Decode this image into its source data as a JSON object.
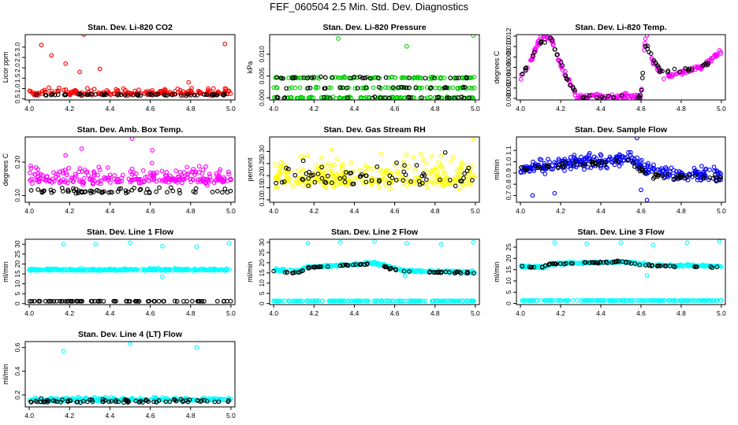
{
  "title": "FEF_060504  2.5 Min. Std. Dev. Diagnostics",
  "colors": {
    "red": "#ff0000",
    "green": "#00cc00",
    "magenta": "#ff00ff",
    "yellow": "#ffff00",
    "blue": "#0000ff",
    "cyan": "#00ffff",
    "black": "#000000"
  },
  "chart_data": [
    {
      "type": "scatter",
      "title": "Stan. Dev. Li-820 CO2",
      "xlabel": "",
      "ylabel": "Licor ppm",
      "xlim": [
        3.98,
        5.02
      ],
      "ylim": [
        0.45,
        3.6
      ],
      "xticks": [
        "4.0",
        "4.2",
        "4.4",
        "4.6",
        "4.8",
        "5.0"
      ],
      "yticks": [
        "0.5",
        "1.0",
        "1.5",
        "2.0",
        "2.5",
        "3.0"
      ],
      "series": [
        {
          "color": "red",
          "pattern": "noisy",
          "base": 0.78,
          "spread": 0.25,
          "count": 200,
          "points": [
            [
              4.06,
              3.1
            ],
            [
              4.27,
              3.6
            ],
            [
              4.18,
              2.2
            ],
            [
              4.35,
              1.95
            ],
            [
              4.11,
              2.6
            ],
            [
              4.97,
              3.15
            ],
            [
              4.79,
              1.3
            ],
            [
              4.25,
              1.8
            ]
          ]
        },
        {
          "color": "black",
          "pattern": "flat",
          "base": 0.7,
          "spread": 0.05,
          "count": 60
        }
      ]
    },
    {
      "type": "scatter",
      "title": "Stan. Dev. Li-820 Pressure",
      "xlabel": "",
      "ylabel": "kPa",
      "xlim": [
        3.98,
        5.02
      ],
      "ylim": [
        -0.0005,
        0.0145
      ],
      "xticks": [
        "4.0",
        "4.2",
        "4.4",
        "4.6",
        "4.8",
        "5.0"
      ],
      "yticks": [
        "0.000",
        "0.005",
        "0.010"
      ],
      "series": [
        {
          "color": "green",
          "pattern": "levels",
          "levels": [
            0.0,
            0.0023,
            0.0046
          ],
          "count": 260,
          "points": [
            [
              4.32,
              0.0136
            ],
            [
              4.66,
              0.0118
            ],
            [
              4.99,
              0.0143
            ]
          ]
        },
        {
          "color": "black",
          "pattern": "levels",
          "levels": [
            0.0,
            0.0023,
            0.0046
          ],
          "count": 80
        }
      ]
    },
    {
      "type": "scatter",
      "title": "Stan. Dev. Li-820 Temp.",
      "xlabel": "",
      "ylabel": "degrees C",
      "xlim": [
        3.98,
        5.02
      ],
      "ylim": [
        -0.0003,
        0.0123
      ],
      "xticks": [
        "4.0",
        "4.2",
        "4.4",
        "4.6",
        "4.8",
        "5.0"
      ],
      "yticks": [
        "0.000",
        "0.002",
        "0.004",
        "0.006",
        "0.008",
        "0.010",
        "0.012"
      ],
      "series": [
        {
          "color": "magenta",
          "pattern": "path",
          "count": 230,
          "jitter": 0.0008,
          "path": [
            [
              4.0,
              0.004
            ],
            [
              4.05,
              0.007
            ],
            [
              4.1,
              0.0118
            ],
            [
              4.15,
              0.0118
            ],
            [
              4.2,
              0.0065
            ],
            [
              4.25,
              0.0025
            ],
            [
              4.28,
              0.0003
            ],
            [
              4.6,
              0.0003
            ],
            [
              4.62,
              0.0115
            ],
            [
              4.66,
              0.007
            ],
            [
              4.72,
              0.004
            ],
            [
              4.8,
              0.005
            ],
            [
              4.9,
              0.006
            ],
            [
              5.0,
              0.009
            ]
          ],
          "points": [
            [
              4.99,
              0.0093
            ],
            [
              4.63,
              0.0122
            ],
            [
              4.11,
              0.0123
            ]
          ]
        },
        {
          "color": "black",
          "pattern": "path",
          "count": 70,
          "jitter": 0.0006,
          "path": [
            [
              4.0,
              0.004
            ],
            [
              4.05,
              0.0075
            ],
            [
              4.1,
              0.011
            ],
            [
              4.15,
              0.0115
            ],
            [
              4.2,
              0.007
            ],
            [
              4.24,
              0.003
            ],
            [
              4.3,
              0.0002
            ],
            [
              4.6,
              0.0002
            ],
            [
              4.62,
              0.0105
            ],
            [
              4.7,
              0.005
            ],
            [
              4.8,
              0.0055
            ],
            [
              4.9,
              0.006
            ],
            [
              5.0,
              0.0085
            ]
          ]
        }
      ]
    },
    {
      "type": "scatter",
      "title": "Stan. Dev. Amb. Box Temp.",
      "xlabel": "",
      "ylabel": "degrees C",
      "xlim": [
        3.98,
        5.02
      ],
      "ylim": [
        0.08,
        0.275
      ],
      "xticks": [
        "4.0",
        "4.2",
        "4.4",
        "4.6",
        "4.8",
        "5.0"
      ],
      "yticks": [
        "0.10",
        "0.20"
      ],
      "series": [
        {
          "color": "magenta",
          "pattern": "noisy",
          "base": 0.15,
          "spread": 0.04,
          "count": 260,
          "points": [
            [
              4.51,
              0.27
            ],
            [
              4.26,
              0.24
            ],
            [
              4.61,
              0.235
            ],
            [
              4.18,
              0.22
            ]
          ]
        },
        {
          "color": "black",
          "pattern": "noisy",
          "base": 0.112,
          "spread": 0.012,
          "count": 70
        }
      ]
    },
    {
      "type": "scatter",
      "title": "Stan. Dev. Gas Stream RH",
      "xlabel": "",
      "ylabel": "percent",
      "xlim": [
        3.98,
        5.02
      ],
      "ylim": [
        0.09,
        0.36
      ],
      "xticks": [
        "4.0",
        "4.2",
        "4.4",
        "4.6",
        "4.8",
        "5.0"
      ],
      "yticks": [
        "0.10",
        "0.15",
        "0.20",
        "0.25",
        "0.30"
      ],
      "series": [
        {
          "color": "yellow",
          "pattern": "noisy",
          "base": 0.19,
          "spread": 0.09,
          "count": 300,
          "points": [
            [
              4.99,
              0.35
            ]
          ]
        },
        {
          "color": "black",
          "pattern": "noisy",
          "base": 0.19,
          "spread": 0.08,
          "count": 70
        }
      ]
    },
    {
      "type": "scatter",
      "title": "Stan. Dev. Sample Flow",
      "xlabel": "",
      "ylabel": "ml/min",
      "xlim": [
        3.98,
        5.02
      ],
      "ylim": [
        0.64,
        1.22
      ],
      "xticks": [
        "4.0",
        "4.2",
        "4.4",
        "4.6",
        "4.8",
        "5.0"
      ],
      "yticks": [
        "0.7",
        "0.8",
        "0.9",
        "1.0",
        "1.1"
      ],
      "series": [
        {
          "color": "blue",
          "pattern": "path",
          "count": 300,
          "jitter": 0.09,
          "path": [
            [
              4.0,
              0.92
            ],
            [
              4.2,
              0.99
            ],
            [
              4.4,
              1.0
            ],
            [
              4.55,
              1.03
            ],
            [
              4.62,
              0.95
            ],
            [
              4.7,
              0.9
            ],
            [
              5.0,
              0.88
            ]
          ],
          "points": [
            [
              4.17,
              0.72
            ],
            [
              4.06,
              0.7
            ],
            [
              4.63,
              0.66
            ],
            [
              4.58,
              1.21
            ],
            [
              4.6,
              0.75
            ]
          ]
        },
        {
          "color": "black",
          "pattern": "path",
          "count": 80,
          "jitter": 0.04,
          "path": [
            [
              4.0,
              0.93
            ],
            [
              4.2,
              0.97
            ],
            [
              4.4,
              0.99
            ],
            [
              4.55,
              1.0
            ],
            [
              4.62,
              0.9
            ],
            [
              4.7,
              0.87
            ],
            [
              5.0,
              0.86
            ]
          ]
        }
      ]
    },
    {
      "type": "scatter",
      "title": "Stan. Dev. Line 1 Flow",
      "xlabel": "",
      "ylabel": "ml/min",
      "xlim": [
        3.98,
        5.02
      ],
      "ylim": [
        -0.5,
        32.5
      ],
      "xticks": [
        "4.0",
        "4.2",
        "4.4",
        "4.6",
        "4.8",
        "5.0"
      ],
      "yticks": [
        "0",
        "5",
        "10",
        "15",
        "20",
        "25",
        "30"
      ],
      "series": [
        {
          "color": "cyan",
          "pattern": "noisy",
          "base": 17.0,
          "spread": 0.8,
          "count": 300,
          "points": [
            [
              4.17,
              30.0
            ],
            [
              4.33,
              30.0
            ],
            [
              4.5,
              30.8
            ],
            [
              4.66,
              29.0
            ],
            [
              4.83,
              28.8
            ],
            [
              4.99,
              30.5
            ],
            [
              4.66,
              13.5
            ]
          ]
        },
        {
          "color": "black",
          "pattern": "flat",
          "base": 1.2,
          "spread": 0.1,
          "count": 80
        }
      ]
    },
    {
      "type": "scatter",
      "title": "Stan. Dev. Line 2 Flow",
      "xlabel": "",
      "ylabel": "ml/min",
      "xlim": [
        3.98,
        5.02
      ],
      "ylim": [
        -0.5,
        31.5
      ],
      "xticks": [
        "4.0",
        "4.2",
        "4.4",
        "4.6",
        "4.8",
        "5.0"
      ],
      "yticks": [
        "0",
        "5",
        "10",
        "15",
        "20",
        "25",
        "30"
      ],
      "series": [
        {
          "color": "cyan",
          "pattern": "path",
          "count": 300,
          "jitter": 0.8,
          "path": [
            [
              4.0,
              16.5
            ],
            [
              4.12,
              16.0
            ],
            [
              4.17,
              18.0
            ],
            [
              4.3,
              18.5
            ],
            [
              4.5,
              20.0
            ],
            [
              4.62,
              16.5
            ],
            [
              4.7,
              16.0
            ],
            [
              5.0,
              15.5
            ]
          ],
          "points": [
            [
              4.17,
              29.5
            ],
            [
              4.33,
              30.0
            ],
            [
              4.5,
              30.5
            ],
            [
              4.66,
              29.5
            ],
            [
              4.83,
              29.0
            ],
            [
              4.99,
              30.0
            ],
            [
              4.65,
              13.5
            ]
          ]
        },
        {
          "color": "cyan",
          "pattern": "flat",
          "base": 1.3,
          "spread": 0.15,
          "count": 200
        },
        {
          "color": "black",
          "pattern": "path",
          "count": 70,
          "jitter": 0.5,
          "path": [
            [
              4.0,
              16.0
            ],
            [
              4.12,
              15.0
            ],
            [
              4.17,
              17.5
            ],
            [
              4.3,
              18.5
            ],
            [
              4.5,
              19.5
            ],
            [
              4.62,
              16.0
            ],
            [
              4.7,
              15.5
            ],
            [
              5.0,
              15.0
            ]
          ]
        }
      ]
    },
    {
      "type": "scatter",
      "title": "Stan. Dev. Line 3 Flow",
      "xlabel": "",
      "ylabel": "ml/min",
      "xlim": [
        3.98,
        5.02
      ],
      "ylim": [
        -0.5,
        28.5
      ],
      "xticks": [
        "4.0",
        "4.2",
        "4.4",
        "4.6",
        "4.8",
        "5.0"
      ],
      "yticks": [
        "0",
        "5",
        "10",
        "15",
        "20",
        "25"
      ],
      "series": [
        {
          "color": "cyan",
          "pattern": "path",
          "count": 300,
          "jitter": 0.7,
          "path": [
            [
              4.0,
              16.5
            ],
            [
              4.12,
              16.0
            ],
            [
              4.15,
              17.5
            ],
            [
              4.3,
              18.0
            ],
            [
              4.5,
              18.5
            ],
            [
              4.62,
              17.5
            ],
            [
              4.7,
              17.0
            ],
            [
              5.0,
              16.5
            ]
          ],
          "points": [
            [
              4.17,
              27.0
            ],
            [
              4.33,
              26.5
            ],
            [
              4.5,
              27.0
            ],
            [
              4.66,
              26.0
            ],
            [
              4.83,
              27.0
            ],
            [
              4.99,
              27.5
            ],
            [
              4.63,
              12.5
            ]
          ]
        },
        {
          "color": "cyan",
          "pattern": "flat",
          "base": 1.3,
          "spread": 0.15,
          "count": 200
        },
        {
          "color": "black",
          "pattern": "path",
          "count": 70,
          "jitter": 0.5,
          "path": [
            [
              4.0,
              16.5
            ],
            [
              4.1,
              16.0
            ],
            [
              4.15,
              17.5
            ],
            [
              4.3,
              18.0
            ],
            [
              4.5,
              18.5
            ],
            [
              4.62,
              17.0
            ],
            [
              4.7,
              16.5
            ],
            [
              5.0,
              16.0
            ]
          ]
        }
      ]
    },
    {
      "type": "scatter",
      "title": "Stan. Dev. Line 4 (LT) Flow",
      "xlabel": "",
      "ylabel": "ml/min",
      "xlim": [
        3.98,
        5.02
      ],
      "ylim": [
        0.1,
        0.65
      ],
      "xticks": [
        "4.0",
        "4.2",
        "4.4",
        "4.6",
        "4.8",
        "5.0"
      ],
      "yticks": [
        "0.2",
        "0.4",
        "0.6"
      ],
      "series": [
        {
          "color": "cyan",
          "pattern": "noisy",
          "base": 0.16,
          "spread": 0.02,
          "count": 300,
          "points": [
            [
              4.17,
              0.57
            ],
            [
              4.5,
              0.63
            ],
            [
              4.83,
              0.6
            ]
          ]
        },
        {
          "color": "black",
          "pattern": "noisy",
          "base": 0.145,
          "spread": 0.02,
          "count": 80
        }
      ]
    }
  ]
}
